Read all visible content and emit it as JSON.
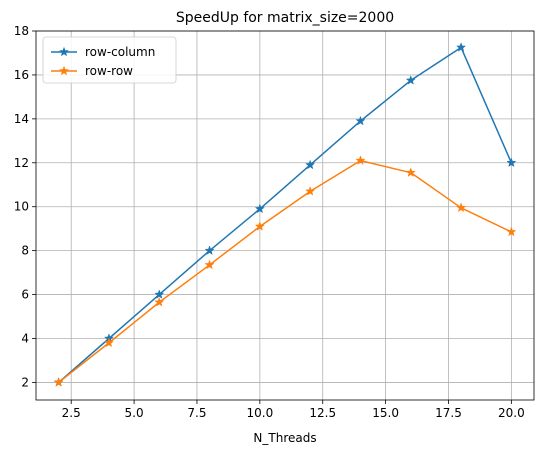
{
  "chart_data": {
    "type": "line",
    "title": "SpeedUp for matrix_size=2000",
    "xlabel": "N_Threads",
    "ylabel": "",
    "xlim": [
      1.1,
      20.9
    ],
    "ylim": [
      1.2,
      18.0
    ],
    "xticks": [
      2.5,
      5.0,
      7.5,
      10.0,
      12.5,
      15.0,
      17.5,
      20.0
    ],
    "xtick_labels": [
      "2.5",
      "5.0",
      "7.5",
      "10.0",
      "12.5",
      "15.0",
      "17.5",
      "20.0"
    ],
    "yticks": [
      2,
      4,
      6,
      8,
      10,
      12,
      14,
      16,
      18
    ],
    "ytick_labels": [
      "2",
      "4",
      "6",
      "8",
      "10",
      "12",
      "14",
      "16",
      "18"
    ],
    "grid": true,
    "legend_position": "top-left",
    "marker": "star",
    "x": [
      2,
      4,
      6,
      8,
      10,
      12,
      14,
      16,
      18,
      20
    ],
    "series": [
      {
        "name": "row-column",
        "color": "#1f77b4",
        "values": [
          2.0,
          4.0,
          6.0,
          8.0,
          9.9,
          11.9,
          13.9,
          15.75,
          17.25,
          12.0
        ]
      },
      {
        "name": "row-row",
        "color": "#ff7f0e",
        "values": [
          2.0,
          3.8,
          5.65,
          7.35,
          9.1,
          10.7,
          12.1,
          11.55,
          9.95,
          8.85
        ]
      }
    ]
  }
}
